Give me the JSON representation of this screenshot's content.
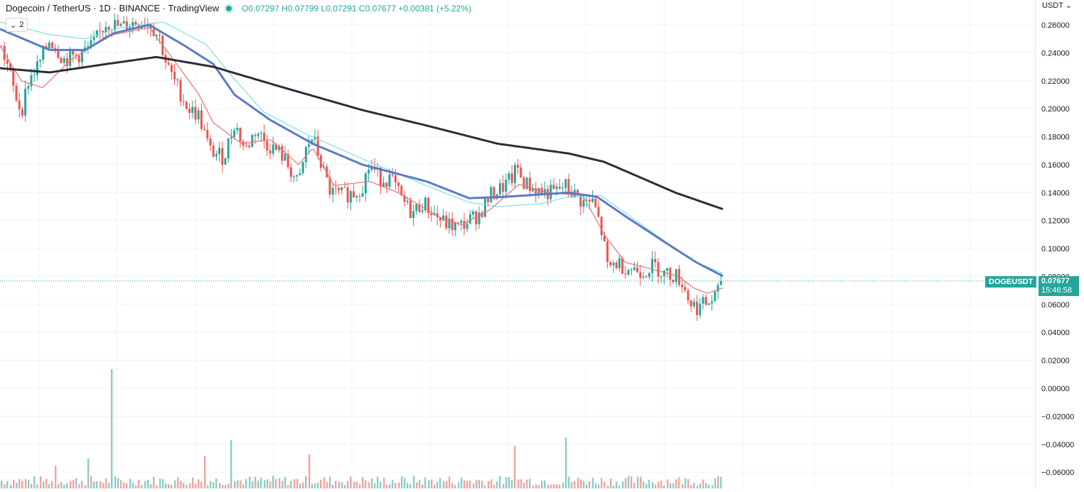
{
  "legend": {
    "symbol": "Dogecoin / TetherUS · 1D · BINANCE · TradingView",
    "ohlc": "O0.07297 H0.07799 L0.07291 C0.07677 +0.00381 (+5.22%)"
  },
  "collapse_count": "2",
  "currency_label": "USDT",
  "last_price": {
    "ticker": "DOGEUSDT",
    "price": "0.07677",
    "countdown": "15:46:58"
  },
  "colors": {
    "up": "#26a69a",
    "down": "#ef5350",
    "ma_fast": "#e57373",
    "ma_cyan": "#80deea",
    "ma_blue": "#5b7cc4",
    "ma_long": "#2a2e39",
    "grid": "#f0f3fa"
  },
  "chart_data": {
    "type": "candlestick",
    "title": "Dogecoin / TetherUS · 1D · BINANCE",
    "y_ticks": [
      "0.26000",
      "0.24000",
      "0.22000",
      "0.20000",
      "0.18000",
      "0.16000",
      "0.14000",
      "0.12000",
      "0.10000",
      "0.08000",
      "0.06000",
      "0.04000",
      "0.02000",
      "0.00000",
      "−0.02000",
      "−0.04000",
      "−0.06000"
    ],
    "ylim": [
      -0.066,
      0.268
    ],
    "grid": true,
    "price_anchors": [
      [
        0,
        0.245
      ],
      [
        10,
        0.232
      ],
      [
        20,
        0.212
      ],
      [
        30,
        0.198
      ],
      [
        40,
        0.22
      ],
      [
        55,
        0.232
      ],
      [
        70,
        0.25
      ],
      [
        90,
        0.235
      ],
      [
        110,
        0.238
      ],
      [
        130,
        0.245
      ],
      [
        150,
        0.262
      ],
      [
        170,
        0.258
      ],
      [
        190,
        0.262
      ],
      [
        210,
        0.262
      ],
      [
        225,
        0.25
      ],
      [
        235,
        0.23
      ],
      [
        250,
        0.215
      ],
      [
        265,
        0.2
      ],
      [
        280,
        0.195
      ],
      [
        295,
        0.17
      ],
      [
        315,
        0.165
      ],
      [
        330,
        0.19
      ],
      [
        345,
        0.17
      ],
      [
        360,
        0.185
      ],
      [
        375,
        0.175
      ],
      [
        395,
        0.168
      ],
      [
        410,
        0.155
      ],
      [
        420,
        0.145
      ],
      [
        430,
        0.17
      ],
      [
        440,
        0.18
      ],
      [
        455,
        0.155
      ],
      [
        465,
        0.14
      ],
      [
        480,
        0.138
      ],
      [
        500,
        0.14
      ],
      [
        510,
        0.145
      ],
      [
        520,
        0.16
      ],
      [
        535,
        0.15
      ],
      [
        550,
        0.15
      ],
      [
        565,
        0.135
      ],
      [
        580,
        0.125
      ],
      [
        595,
        0.133
      ],
      [
        610,
        0.125
      ],
      [
        625,
        0.118
      ],
      [
        645,
        0.115
      ],
      [
        660,
        0.12
      ],
      [
        675,
        0.125
      ],
      [
        690,
        0.138
      ],
      [
        705,
        0.143
      ],
      [
        720,
        0.15
      ],
      [
        728,
        0.158
      ],
      [
        735,
        0.148
      ],
      [
        750,
        0.143
      ],
      [
        765,
        0.14
      ],
      [
        780,
        0.14
      ],
      [
        795,
        0.145
      ],
      [
        805,
        0.14
      ],
      [
        820,
        0.133
      ],
      [
        835,
        0.133
      ],
      [
        845,
        0.115
      ],
      [
        850,
        0.102
      ],
      [
        855,
        0.085
      ],
      [
        865,
        0.09
      ],
      [
        885,
        0.086
      ],
      [
        905,
        0.084
      ],
      [
        920,
        0.088
      ],
      [
        935,
        0.082
      ],
      [
        950,
        0.081
      ],
      [
        960,
        0.076
      ],
      [
        970,
        0.062
      ],
      [
        980,
        0.058
      ],
      [
        990,
        0.06
      ],
      [
        1000,
        0.062
      ],
      [
        1010,
        0.068
      ],
      [
        1018,
        0.0768
      ]
    ],
    "ma_long_anchors": [
      [
        0,
        0.229
      ],
      [
        70,
        0.226
      ],
      [
        150,
        0.232
      ],
      [
        220,
        0.237
      ],
      [
        300,
        0.23
      ],
      [
        400,
        0.215
      ],
      [
        510,
        0.199
      ],
      [
        600,
        0.188
      ],
      [
        700,
        0.175
      ],
      [
        800,
        0.168
      ],
      [
        850,
        0.162
      ],
      [
        950,
        0.14
      ],
      [
        1018,
        0.128
      ]
    ],
    "ma_blue_anchors": [
      [
        0,
        0.257
      ],
      [
        70,
        0.242
      ],
      [
        120,
        0.242
      ],
      [
        160,
        0.254
      ],
      [
        210,
        0.26
      ],
      [
        260,
        0.245
      ],
      [
        300,
        0.232
      ],
      [
        330,
        0.21
      ],
      [
        380,
        0.192
      ],
      [
        440,
        0.175
      ],
      [
        510,
        0.16
      ],
      [
        600,
        0.148
      ],
      [
        660,
        0.136
      ],
      [
        710,
        0.137
      ],
      [
        800,
        0.14
      ],
      [
        840,
        0.137
      ],
      [
        880,
        0.123
      ],
      [
        940,
        0.103
      ],
      [
        980,
        0.09
      ],
      [
        1018,
        0.08
      ]
    ],
    "ma_cyan_anchors": [
      [
        0,
        0.262
      ],
      [
        70,
        0.253
      ],
      [
        120,
        0.25
      ],
      [
        170,
        0.258
      ],
      [
        230,
        0.262
      ],
      [
        290,
        0.246
      ],
      [
        320,
        0.227
      ],
      [
        370,
        0.198
      ],
      [
        430,
        0.182
      ],
      [
        520,
        0.162
      ],
      [
        600,
        0.145
      ],
      [
        660,
        0.133
      ],
      [
        700,
        0.13
      ],
      [
        760,
        0.132
      ],
      [
        800,
        0.137
      ],
      [
        845,
        0.138
      ],
      [
        900,
        0.118
      ],
      [
        950,
        0.1
      ],
      [
        985,
        0.089
      ],
      [
        1018,
        0.082
      ]
    ],
    "ma_fast_anchors": [
      [
        0,
        0.245
      ],
      [
        30,
        0.22
      ],
      [
        60,
        0.215
      ],
      [
        100,
        0.235
      ],
      [
        150,
        0.252
      ],
      [
        210,
        0.258
      ],
      [
        240,
        0.238
      ],
      [
        280,
        0.21
      ],
      [
        300,
        0.19
      ],
      [
        340,
        0.175
      ],
      [
        380,
        0.178
      ],
      [
        420,
        0.16
      ],
      [
        440,
        0.172
      ],
      [
        470,
        0.145
      ],
      [
        520,
        0.148
      ],
      [
        560,
        0.14
      ],
      [
        620,
        0.122
      ],
      [
        650,
        0.117
      ],
      [
        690,
        0.128
      ],
      [
        730,
        0.146
      ],
      [
        770,
        0.14
      ],
      [
        820,
        0.138
      ],
      [
        850,
        0.11
      ],
      [
        880,
        0.09
      ],
      [
        920,
        0.085
      ],
      [
        955,
        0.08
      ],
      [
        975,
        0.072
      ],
      [
        995,
        0.068
      ],
      [
        1018,
        0.072
      ]
    ]
  }
}
